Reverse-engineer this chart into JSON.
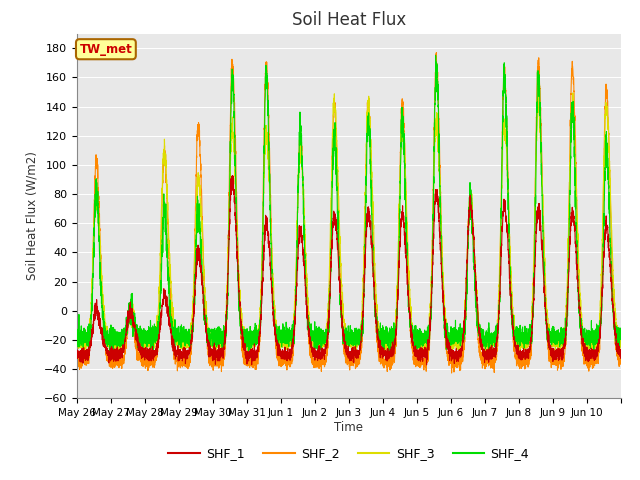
{
  "title": "Soil Heat Flux",
  "ylabel": "Soil Heat Flux (W/m2)",
  "xlabel": "Time",
  "ylim": [
    -60,
    190
  ],
  "yticks": [
    -60,
    -40,
    -20,
    0,
    20,
    40,
    60,
    80,
    100,
    120,
    140,
    160,
    180
  ],
  "bg_color": "#e8e8e8",
  "series_colors": {
    "SHF_1": "#cc0000",
    "SHF_2": "#ff8800",
    "SHF_3": "#dddd00",
    "SHF_4": "#00dd00"
  },
  "line_width": 0.8,
  "n_days": 16,
  "points_per_day": 288,
  "shf2_peaks": [
    102,
    0,
    107,
    128,
    170,
    168,
    120,
    140,
    142,
    143,
    170,
    80,
    162,
    170,
    168,
    152
  ],
  "shf3_peaks": [
    75,
    0,
    109,
    90,
    125,
    122,
    110,
    142,
    140,
    126,
    130,
    73,
    128,
    140,
    138,
    140
  ],
  "shf4_peaks": [
    80,
    0,
    70,
    70,
    160,
    162,
    124,
    122,
    130,
    130,
    167,
    76,
    165,
    163,
    138,
    113
  ],
  "shf1_peaks": [
    0,
    0,
    10,
    40,
    90,
    60,
    55,
    65,
    68,
    65,
    80,
    73,
    73,
    70,
    68,
    58
  ],
  "shf2_trough": -35,
  "shf3_trough": -22,
  "shf4_trough": -18,
  "shf1_trough": -30,
  "tick_labels": [
    "May 26",
    "May 27",
    "May 28",
    "May 29",
    "May 30",
    "May 31",
    "Jun 1",
    "Jun 2",
    "Jun 3",
    "Jun 4",
    "Jun 5",
    "Jun 6",
    "Jun 7",
    "Jun 8",
    "Jun 9",
    "Jun 10",
    ""
  ]
}
